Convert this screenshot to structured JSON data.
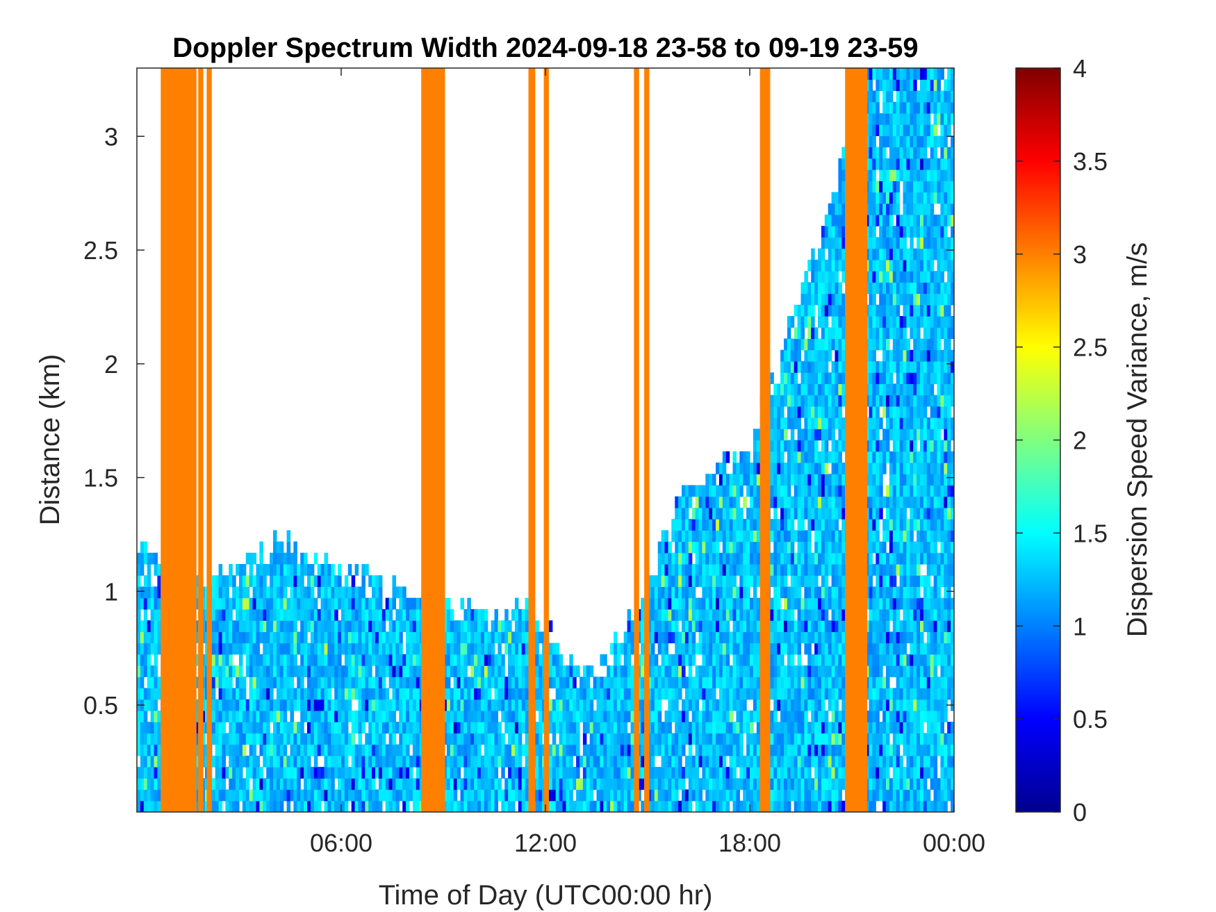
{
  "chart_data": {
    "type": "heatmap",
    "title": "Doppler Spectrum Width 2024-09-18 23-58 to 09-19 23-59",
    "xlabel": "Time of Day (UTC00:00 hr)",
    "ylabel": "Distance (km)",
    "colorbar_label": "Dispersion Speed Variance, m/s",
    "colormap": "jet",
    "xlim": [
      0,
      24
    ],
    "ylim": [
      0.03,
      3.3
    ],
    "clim": [
      0,
      4
    ],
    "x_ticks": [
      6,
      12,
      18,
      24
    ],
    "x_tick_labels": [
      "06:00",
      "12:00",
      "18:00",
      "00:00"
    ],
    "y_ticks": [
      0.5,
      1,
      1.5,
      2,
      2.5,
      3
    ],
    "y_tick_labels": [
      "0.5",
      "1",
      "1.5",
      "2",
      "2.5",
      "3"
    ],
    "colorbar_ticks": [
      0,
      0.5,
      1,
      1.5,
      2,
      2.5,
      3,
      3.5,
      4
    ],
    "colorbar_tick_labels": [
      "0",
      "0.5",
      "1",
      "1.5",
      "2",
      "2.5",
      "3",
      "3.5",
      "4"
    ],
    "no_data_value": 3.0,
    "no_data_periods_hr": [
      [
        0.7,
        1.75
      ],
      [
        1.8,
        1.95
      ],
      [
        2.05,
        2.2
      ],
      [
        8.35,
        9.05
      ],
      [
        11.5,
        11.7
      ],
      [
        11.95,
        12.1
      ],
      [
        14.6,
        14.75
      ],
      [
        14.9,
        15.05
      ],
      [
        18.3,
        18.6
      ],
      [
        20.8,
        21.45
      ]
    ],
    "boundary_layer_top_km": [
      {
        "hour": 0,
        "km": 1.2
      },
      {
        "hour": 1,
        "km": 1.0
      },
      {
        "hour": 2.5,
        "km": 1.05
      },
      {
        "hour": 4.5,
        "km": 1.2
      },
      {
        "hour": 6,
        "km": 1.05
      },
      {
        "hour": 8.3,
        "km": 0.95
      },
      {
        "hour": 10.5,
        "km": 0.85
      },
      {
        "hour": 11.6,
        "km": 0.9
      },
      {
        "hour": 12.5,
        "km": 0.7
      },
      {
        "hour": 13.5,
        "km": 0.6
      },
      {
        "hour": 15,
        "km": 1.0
      },
      {
        "hour": 16,
        "km": 1.4
      },
      {
        "hour": 18,
        "km": 1.6
      },
      {
        "hour": 20,
        "km": 2.5
      },
      {
        "hour": 21.5,
        "km": 3.3
      },
      {
        "hour": 24,
        "km": 3.3
      }
    ],
    "typical_width_in_boundary_layer_ms": [
      1.0,
      1.5
    ],
    "grid": false
  }
}
